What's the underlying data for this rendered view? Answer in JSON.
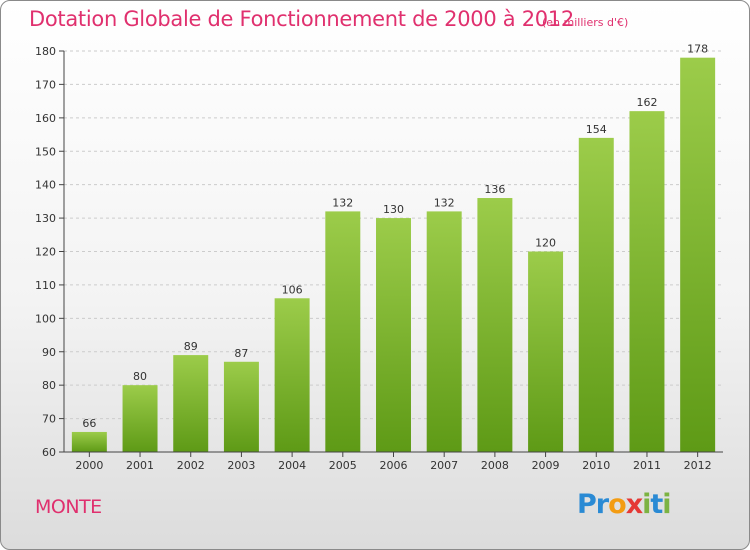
{
  "header": {
    "title": "Dotation Globale de Fonctionnement de 2000 à 2012",
    "subtitle": "(en milliers d'€)"
  },
  "footer": {
    "commune": "MONTE",
    "logo_letters": [
      {
        "char": "P",
        "color": "#2a8ad4"
      },
      {
        "char": "r",
        "color": "#2a8ad4"
      },
      {
        "char": "o",
        "color": "#f39c12"
      },
      {
        "char": "x",
        "color": "#e53935"
      },
      {
        "char": "i",
        "color": "#7cb342"
      },
      {
        "char": "t",
        "color": "#2a8ad4"
      },
      {
        "char": "i",
        "color": "#7cb342"
      }
    ]
  },
  "chart_data": {
    "type": "bar",
    "title": "Dotation Globale de Fonctionnement de 2000 à 2012",
    "subtitle": "(en milliers d'€)",
    "categories": [
      "2000",
      "2001",
      "2002",
      "2003",
      "2004",
      "2005",
      "2006",
      "2007",
      "2008",
      "2009",
      "2010",
      "2011",
      "2012"
    ],
    "values": [
      66,
      80,
      89,
      87,
      106,
      132,
      130,
      132,
      136,
      120,
      154,
      162,
      178
    ],
    "ylim": [
      60,
      180
    ],
    "yticks": [
      60,
      70,
      80,
      90,
      100,
      110,
      120,
      130,
      140,
      150,
      160,
      170,
      180
    ],
    "grid": true,
    "colors": {
      "bar_top": "#9ccc4a",
      "bar_bottom": "#5e9a16",
      "grid": "#cccccc",
      "axis": "#444444"
    }
  }
}
